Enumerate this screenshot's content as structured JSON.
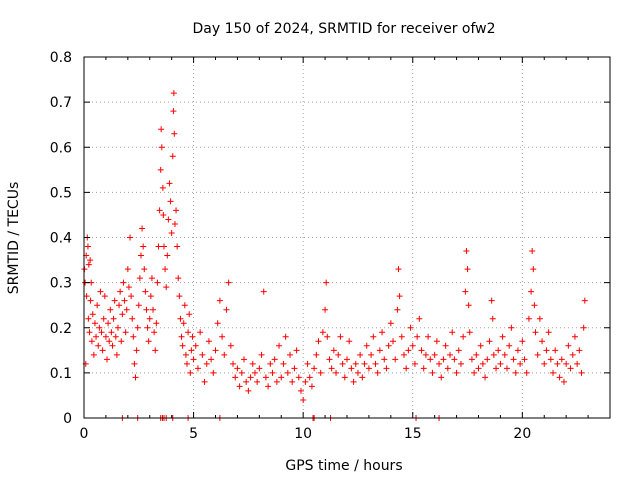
{
  "chart_data": {
    "type": "scatter",
    "title": "Day 150 of 2024, SRMTID for receiver ofw2",
    "xlabel": "GPS time / hours",
    "ylabel": "SRMTID / TECUs",
    "xlim": [
      0,
      24
    ],
    "ylim": [
      0,
      0.8
    ],
    "xticks": [
      0,
      5,
      10,
      15,
      20
    ],
    "xtick_labels": [
      "0",
      "5",
      "10",
      "15",
      "20"
    ],
    "yticks": [
      0,
      0.1,
      0.2,
      0.3,
      0.4,
      0.5,
      0.6,
      0.7,
      0.8
    ],
    "ytick_labels": [
      "0",
      "0.1",
      "0.2",
      "0.3",
      "0.4",
      "0.5",
      "0.6",
      "0.7",
      "0.8"
    ],
    "grid": true,
    "marker": "+",
    "colors": {
      "points": "#ff0000",
      "grid": "#a0a0a0",
      "axes": "#000000"
    },
    "series": [
      {
        "name": "SRMTID",
        "points": [
          [
            0.02,
            0.33
          ],
          [
            0.05,
            0.3
          ],
          [
            0.08,
            0.12
          ],
          [
            0.1,
            0.36
          ],
          [
            0.12,
            0.27
          ],
          [
            0.15,
            0.4
          ],
          [
            0.18,
            0.38
          ],
          [
            0.2,
            0.22
          ],
          [
            0.22,
            0.34
          ],
          [
            0.25,
            0.19
          ],
          [
            0.28,
            0.35
          ],
          [
            0.3,
            0.26
          ],
          [
            0.33,
            0.3
          ],
          [
            0.36,
            0.17
          ],
          [
            0.4,
            0.23
          ],
          [
            0.45,
            0.14
          ],
          [
            0.5,
            0.21
          ],
          [
            0.55,
            0.18
          ],
          [
            0.6,
            0.25
          ],
          [
            0.65,
            0.16
          ],
          [
            0.7,
            0.2
          ],
          [
            0.75,
            0.28
          ],
          [
            0.8,
            0.19
          ],
          [
            0.85,
            0.15
          ],
          [
            0.9,
            0.22
          ],
          [
            0.95,
            0.27
          ],
          [
            1.0,
            0.18
          ],
          [
            1.05,
            0.13
          ],
          [
            1.1,
            0.21
          ],
          [
            1.15,
            0.17
          ],
          [
            1.2,
            0.24
          ],
          [
            1.25,
            0.19
          ],
          [
            1.3,
            0.16
          ],
          [
            1.35,
            0.22
          ],
          [
            1.4,
            0.26
          ],
          [
            1.45,
            0.18
          ],
          [
            1.5,
            0.14
          ],
          [
            1.55,
            0.2
          ],
          [
            1.6,
            0.25
          ],
          [
            1.65,
            0.28
          ],
          [
            1.7,
            0.17
          ],
          [
            1.75,
            0.23
          ],
          [
            1.8,
            0.3
          ],
          [
            1.85,
            0.26
          ],
          [
            1.9,
            0.19
          ],
          [
            1.95,
            0.24
          ],
          [
            2.0,
            0.33
          ],
          [
            2.05,
            0.29
          ],
          [
            2.1,
            0.4
          ],
          [
            2.15,
            0.27
          ],
          [
            2.2,
            0.22
          ],
          [
            2.25,
            0.18
          ],
          [
            2.3,
            0.12
          ],
          [
            2.35,
            0.09
          ],
          [
            2.4,
            0.15
          ],
          [
            2.45,
            0.2
          ],
          [
            2.5,
            0.25
          ],
          [
            2.55,
            0.31
          ],
          [
            2.6,
            0.36
          ],
          [
            2.65,
            0.42
          ],
          [
            2.7,
            0.38
          ],
          [
            2.75,
            0.33
          ],
          [
            2.8,
            0.28
          ],
          [
            2.85,
            0.24
          ],
          [
            2.9,
            0.2
          ],
          [
            2.95,
            0.17
          ],
          [
            3.0,
            0.22
          ],
          [
            3.05,
            0.27
          ],
          [
            3.1,
            0.31
          ],
          [
            3.15,
            0.24
          ],
          [
            3.2,
            0.19
          ],
          [
            3.25,
            0.15
          ],
          [
            3.3,
            0.21
          ],
          [
            3.35,
            0.3
          ],
          [
            3.4,
            0.38
          ],
          [
            3.45,
            0.46
          ],
          [
            3.5,
            0.55
          ],
          [
            3.52,
            0.64
          ],
          [
            3.55,
            0.6
          ],
          [
            3.6,
            0.51
          ],
          [
            3.62,
            0.45
          ],
          [
            3.65,
            0.38
          ],
          [
            3.7,
            0.33
          ],
          [
            3.75,
            0.29
          ],
          [
            3.8,
            0.36
          ],
          [
            3.85,
            0.44
          ],
          [
            3.9,
            0.52
          ],
          [
            3.95,
            0.48
          ],
          [
            4.0,
            0.41
          ],
          [
            4.05,
            0.58
          ],
          [
            4.08,
            0.68
          ],
          [
            4.1,
            0.72
          ],
          [
            4.12,
            0.63
          ],
          [
            4.15,
            0.43
          ],
          [
            4.2,
            0.46
          ],
          [
            4.25,
            0.38
          ],
          [
            4.3,
            0.31
          ],
          [
            4.35,
            0.27
          ],
          [
            4.4,
            0.22
          ],
          [
            4.45,
            0.18
          ],
          [
            4.5,
            0.16
          ],
          [
            4.55,
            0.21
          ],
          [
            4.6,
            0.25
          ],
          [
            4.65,
            0.14
          ],
          [
            4.7,
            0.12
          ],
          [
            4.75,
            0.19
          ],
          [
            4.8,
            0.23
          ],
          [
            4.85,
            0.1
          ],
          [
            4.9,
            0.15
          ],
          [
            4.95,
            0.18
          ],
          [
            5.0,
            0.13
          ],
          [
            5.1,
            0.16
          ],
          [
            5.2,
            0.11
          ],
          [
            5.3,
            0.19
          ],
          [
            5.4,
            0.14
          ],
          [
            5.5,
            0.08
          ],
          [
            5.6,
            0.12
          ],
          [
            5.7,
            0.17
          ],
          [
            5.8,
            0.13
          ],
          [
            5.9,
            0.1
          ],
          [
            6.0,
            0.15
          ],
          [
            6.1,
            0.21
          ],
          [
            6.2,
            0.26
          ],
          [
            6.3,
            0.18
          ],
          [
            6.4,
            0.14
          ],
          [
            6.5,
            0.24
          ],
          [
            6.6,
            0.3
          ],
          [
            6.7,
            0.16
          ],
          [
            6.8,
            0.12
          ],
          [
            6.9,
            0.09
          ],
          [
            7.0,
            0.11
          ],
          [
            7.1,
            0.07
          ],
          [
            7.2,
            0.1
          ],
          [
            7.3,
            0.13
          ],
          [
            7.4,
            0.08
          ],
          [
            7.5,
            0.06
          ],
          [
            7.6,
            0.09
          ],
          [
            7.7,
            0.12
          ],
          [
            7.8,
            0.1
          ],
          [
            7.9,
            0.08
          ],
          [
            8.0,
            0.11
          ],
          [
            8.1,
            0.14
          ],
          [
            8.2,
            0.28
          ],
          [
            8.3,
            0.09
          ],
          [
            8.4,
            0.07
          ],
          [
            8.5,
            0.12
          ],
          [
            8.6,
            0.1
          ],
          [
            8.7,
            0.13
          ],
          [
            8.8,
            0.08
          ],
          [
            8.9,
            0.16
          ],
          [
            9.0,
            0.09
          ],
          [
            9.1,
            0.12
          ],
          [
            9.2,
            0.18
          ],
          [
            9.3,
            0.1
          ],
          [
            9.4,
            0.14
          ],
          [
            9.5,
            0.08
          ],
          [
            9.6,
            0.11
          ],
          [
            9.7,
            0.15
          ],
          [
            9.8,
            0.09
          ],
          [
            9.9,
            0.06
          ],
          [
            10.0,
            0.04
          ],
          [
            10.1,
            0.08
          ],
          [
            10.2,
            0.12
          ],
          [
            10.3,
            0.09
          ],
          [
            10.4,
            0.07
          ],
          [
            10.5,
            0.11
          ],
          [
            10.6,
            0.14
          ],
          [
            10.7,
            0.17
          ],
          [
            10.8,
            0.1
          ],
          [
            10.9,
            0.19
          ],
          [
            11.0,
            0.24
          ],
          [
            11.05,
            0.3
          ],
          [
            11.1,
            0.18
          ],
          [
            11.2,
            0.13
          ],
          [
            11.3,
            0.11
          ],
          [
            11.4,
            0.15
          ],
          [
            11.5,
            0.1
          ],
          [
            11.6,
            0.14
          ],
          [
            11.7,
            0.18
          ],
          [
            11.8,
            0.12
          ],
          [
            11.9,
            0.09
          ],
          [
            12.0,
            0.13
          ],
          [
            12.1,
            0.17
          ],
          [
            12.2,
            0.11
          ],
          [
            12.3,
            0.08
          ],
          [
            12.4,
            0.12
          ],
          [
            12.5,
            0.1
          ],
          [
            12.6,
            0.14
          ],
          [
            12.7,
            0.09
          ],
          [
            12.8,
            0.12
          ],
          [
            12.9,
            0.16
          ],
          [
            13.0,
            0.11
          ],
          [
            13.1,
            0.14
          ],
          [
            13.2,
            0.18
          ],
          [
            13.3,
            0.12
          ],
          [
            13.4,
            0.1
          ],
          [
            13.5,
            0.15
          ],
          [
            13.6,
            0.19
          ],
          [
            13.7,
            0.13
          ],
          [
            13.8,
            0.11
          ],
          [
            13.9,
            0.16
          ],
          [
            14.0,
            0.21
          ],
          [
            14.1,
            0.17
          ],
          [
            14.2,
            0.13
          ],
          [
            14.3,
            0.24
          ],
          [
            14.35,
            0.33
          ],
          [
            14.4,
            0.27
          ],
          [
            14.5,
            0.18
          ],
          [
            14.6,
            0.14
          ],
          [
            14.7,
            0.11
          ],
          [
            14.8,
            0.15
          ],
          [
            14.9,
            0.2
          ],
          [
            15.0,
            0.16
          ],
          [
            15.1,
            0.12
          ],
          [
            15.2,
            0.18
          ],
          [
            15.3,
            0.22
          ],
          [
            15.4,
            0.15
          ],
          [
            15.5,
            0.11
          ],
          [
            15.6,
            0.14
          ],
          [
            15.7,
            0.18
          ],
          [
            15.8,
            0.13
          ],
          [
            15.9,
            0.1
          ],
          [
            16.0,
            0.14
          ],
          [
            16.1,
            0.17
          ],
          [
            16.2,
            0.12
          ],
          [
            16.3,
            0.09
          ],
          [
            16.4,
            0.13
          ],
          [
            16.5,
            0.16
          ],
          [
            16.6,
            0.11
          ],
          [
            16.7,
            0.14
          ],
          [
            16.8,
            0.19
          ],
          [
            16.9,
            0.13
          ],
          [
            17.0,
            0.1
          ],
          [
            17.1,
            0.15
          ],
          [
            17.2,
            0.12
          ],
          [
            17.3,
            0.18
          ],
          [
            17.4,
            0.28
          ],
          [
            17.45,
            0.37
          ],
          [
            17.5,
            0.33
          ],
          [
            17.55,
            0.25
          ],
          [
            17.6,
            0.19
          ],
          [
            17.7,
            0.13
          ],
          [
            17.8,
            0.1
          ],
          [
            17.9,
            0.14
          ],
          [
            18.0,
            0.11
          ],
          [
            18.1,
            0.16
          ],
          [
            18.2,
            0.12
          ],
          [
            18.3,
            0.09
          ],
          [
            18.4,
            0.13
          ],
          [
            18.5,
            0.17
          ],
          [
            18.6,
            0.26
          ],
          [
            18.65,
            0.22
          ],
          [
            18.7,
            0.14
          ],
          [
            18.8,
            0.11
          ],
          [
            18.9,
            0.15
          ],
          [
            19.0,
            0.12
          ],
          [
            19.1,
            0.18
          ],
          [
            19.2,
            0.14
          ],
          [
            19.3,
            0.11
          ],
          [
            19.4,
            0.16
          ],
          [
            19.5,
            0.2
          ],
          [
            19.6,
            0.13
          ],
          [
            19.7,
            0.1
          ],
          [
            19.8,
            0.15
          ],
          [
            19.9,
            0.12
          ],
          [
            20.0,
            0.17
          ],
          [
            20.1,
            0.13
          ],
          [
            20.2,
            0.1
          ],
          [
            20.3,
            0.22
          ],
          [
            20.4,
            0.28
          ],
          [
            20.45,
            0.37
          ],
          [
            20.5,
            0.33
          ],
          [
            20.55,
            0.25
          ],
          [
            20.6,
            0.19
          ],
          [
            20.7,
            0.14
          ],
          [
            20.8,
            0.22
          ],
          [
            20.9,
            0.17
          ],
          [
            21.0,
            0.12
          ],
          [
            21.1,
            0.15
          ],
          [
            21.2,
            0.19
          ],
          [
            21.3,
            0.13
          ],
          [
            21.4,
            0.1
          ],
          [
            21.5,
            0.15
          ],
          [
            21.6,
            0.12
          ],
          [
            21.7,
            0.09
          ],
          [
            21.8,
            0.13
          ],
          [
            21.9,
            0.08
          ],
          [
            22.0,
            0.12
          ],
          [
            22.1,
            0.16
          ],
          [
            22.2,
            0.11
          ],
          [
            22.3,
            0.14
          ],
          [
            22.4,
            0.18
          ],
          [
            22.5,
            0.12
          ],
          [
            22.6,
            0.15
          ],
          [
            22.7,
            0.1
          ],
          [
            22.8,
            0.2
          ],
          [
            22.85,
            0.26
          ]
        ]
      }
    ],
    "zero_points": [
      1.75,
      2.45,
      3.5,
      3.58,
      3.65,
      3.75,
      4.05,
      4.75,
      6.2,
      10.45,
      10.5,
      11.25,
      15.15,
      16.2
    ]
  }
}
